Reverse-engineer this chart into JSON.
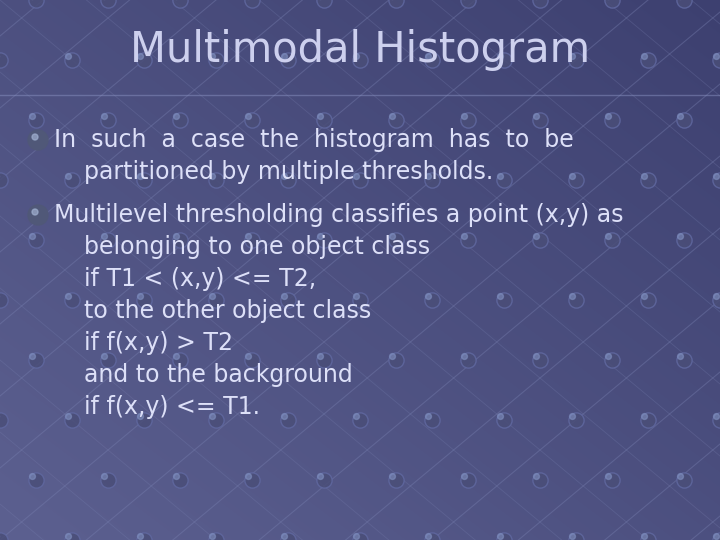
{
  "title": "Multimodal Histogram",
  "title_fontsize": 30,
  "title_color": "#cdd0ee",
  "bg_color_left": "#5c6090",
  "bg_color_right": "#3d4070",
  "text_color": "#dde0f8",
  "bullet_lines_1": [
    "In  such  a  case  the  histogram  has  to  be",
    "    partitioned by multiple thresholds."
  ],
  "bullet_lines_2": [
    "Multilevel thresholding classifies a point (x,y) as",
    "    belonging to one object class",
    "    if T1 < (x,y) <= T2,",
    "    to the other object class",
    "    if f(x,y) > T2",
    "    and to the background",
    "    if f(x,y) <= T1."
  ],
  "text_fontsize": 17,
  "grid_line_color": "#7880b0",
  "grid_node_color": "#4a4e78",
  "grid_node_edge": "#6068a0"
}
